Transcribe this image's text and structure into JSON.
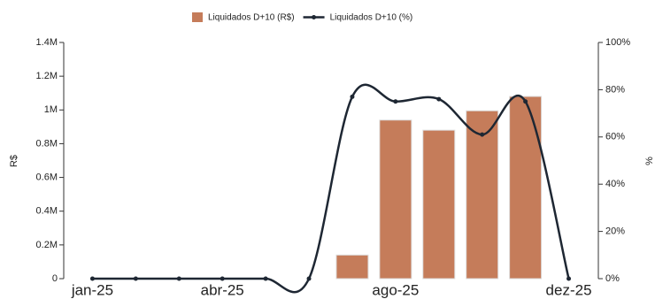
{
  "chart_data": {
    "type": "bar-line",
    "categories": [
      "jan-25",
      null,
      null,
      "abr-25",
      null,
      null,
      null,
      "ago-25",
      null,
      null,
      null,
      "dez-25"
    ],
    "series": [
      {
        "name": "Liquidados D+10 (R$)",
        "type": "bar",
        "color": "#c57c5a",
        "values": [
          null,
          null,
          null,
          null,
          null,
          null,
          140000,
          940000,
          880000,
          995000,
          1080000,
          null
        ]
      },
      {
        "name": "Liquidados D+10 (%)",
        "type": "line",
        "axis": "y2",
        "color": "#1e2733",
        "values": [
          0,
          0,
          0,
          0,
          0,
          0,
          77,
          75,
          76,
          61,
          75,
          0
        ]
      }
    ],
    "y_label": "R$",
    "y2_label": "%",
    "ylim": [
      0,
      1400000
    ],
    "yticks": [
      0,
      {
        "value": 200000,
        "label": "0.2M"
      },
      {
        "value": 400000,
        "label": "0.4M"
      },
      {
        "value": 600000,
        "label": "0.6M"
      },
      {
        "value": 800000,
        "label": "0.8M"
      },
      {
        "value": 1000000,
        "label": "1M"
      },
      {
        "value": 1200000,
        "label": "1.2M"
      },
      {
        "value": 1400000,
        "label": "1.4M"
      }
    ],
    "y2lim": [
      0,
      100
    ],
    "y2ticks": [
      {
        "value": 0,
        "label": "0%"
      },
      {
        "value": 20,
        "label": "20%"
      },
      {
        "value": 40,
        "label": "40%"
      },
      {
        "value": 60,
        "label": "60%"
      },
      {
        "value": 80,
        "label": "80%"
      },
      {
        "value": 100,
        "label": "100%"
      }
    ],
    "legend": "top"
  }
}
